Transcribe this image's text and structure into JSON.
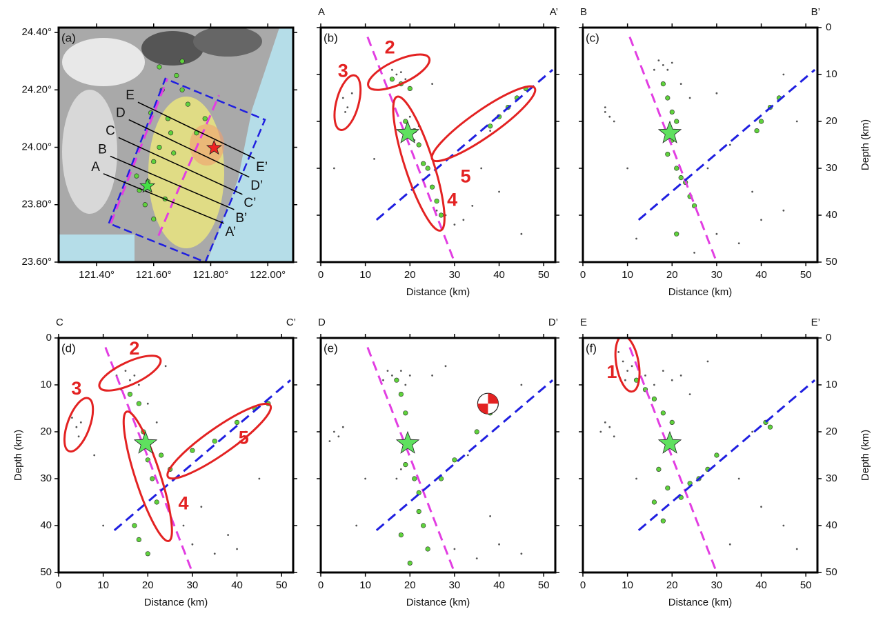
{
  "chart_data": [
    {
      "type": "map",
      "panel_label": "(a)",
      "y_axis": "left",
      "xlim": [
        121.267,
        122.089
      ],
      "ylim": [
        23.6,
        24.417
      ],
      "xticks": [
        {
          "value": 121.4,
          "label": "121.40°"
        },
        {
          "value": 121.6,
          "label": "121.60°"
        },
        {
          "value": 121.8,
          "label": "121.80°"
        },
        {
          "value": 122.0,
          "label": "122.00°"
        }
      ],
      "yticks": [
        {
          "value": 23.6,
          "label": "23.60°"
        },
        {
          "value": 23.8,
          "label": "23.80°"
        },
        {
          "value": 24.0,
          "label": "24.00°"
        },
        {
          "value": 24.2,
          "label": "24.20°"
        },
        {
          "value": 24.4,
          "label": "24.40°"
        }
      ],
      "series": [
        {
          "color": "#5fd23c",
          "x": [
            121.55,
            121.58,
            121.6,
            121.62,
            121.65,
            121.63,
            121.68,
            121.7,
            121.72,
            121.57,
            121.6,
            121.66,
            121.59,
            121.75,
            121.78,
            121.62,
            121.54,
            121.67,
            121.7,
            121.64
          ],
          "values": [
            23.85,
            23.88,
            23.95,
            24.0,
            24.1,
            24.2,
            24.25,
            24.3,
            24.15,
            23.8,
            23.75,
            24.05,
            24.12,
            24.05,
            24.1,
            24.28,
            23.9,
            23.98,
            24.2,
            23.82
          ]
        }
      ],
      "box": {
        "color": "#1f1fe0",
        "x": [
          121.443,
          121.641,
          121.99,
          121.781
        ],
        "values": [
          23.735,
          24.239,
          24.096,
          23.6
        ]
      },
      "lines": [
        {
          "color": "#e23ee2",
          "x": [
            121.45,
            121.648
          ],
          "values": [
            23.735,
            24.239
          ]
        },
        {
          "color": "#e23ee2",
          "x": [
            121.617,
            121.829
          ],
          "values": [
            23.692,
            24.181
          ]
        }
      ],
      "profiles": [
        {
          "label_start": "A",
          "label_end": "A’",
          "x": [
            121.424,
            121.846
          ],
          "values": [
            23.908,
            23.735
          ]
        },
        {
          "label_start": "B",
          "label_end": "B’",
          "x": [
            121.448,
            121.882
          ],
          "values": [
            23.969,
            23.783
          ]
        },
        {
          "label_start": "C",
          "label_end": "C’",
          "x": [
            121.477,
            121.911
          ],
          "values": [
            24.034,
            23.836
          ]
        },
        {
          "label_start": "D",
          "label_end": "D’",
          "x": [
            121.513,
            121.935
          ],
          "values": [
            24.096,
            23.896
          ]
        },
        {
          "label_start": "E",
          "label_end": "E’",
          "x": [
            121.545,
            121.954
          ],
          "values": [
            24.157,
            23.961
          ]
        }
      ],
      "stars": [
        {
          "color": "#ee2222",
          "x": 121.812,
          "y": 23.998
        },
        {
          "color": "#44e044",
          "x": 121.578,
          "y": 23.865
        }
      ]
    },
    {
      "type": "scatter",
      "panel_label": "(b)",
      "profile_start": "A",
      "profile_end": "A’",
      "xlabel": "Distance (km)",
      "y_axis": "none",
      "xlim": [
        0,
        52.6
      ],
      "ylim": [
        50,
        0
      ],
      "xticks": [
        0,
        10,
        20,
        30,
        40,
        50
      ],
      "yticks": [
        0,
        10,
        20,
        30,
        40,
        50
      ],
      "series": [
        {
          "color": "#555555",
          "x": [
            5,
            6,
            7,
            5.5,
            16,
            17,
            18,
            19,
            20,
            19,
            22,
            21,
            28,
            30,
            32,
            34,
            26,
            36,
            40,
            45,
            12,
            25,
            38,
            3
          ],
          "values": [
            15,
            17,
            14,
            18,
            9,
            10,
            9.5,
            11,
            19,
            22,
            21,
            24,
            40,
            42,
            41,
            38,
            39,
            30,
            35,
            44,
            28,
            12,
            22,
            30
          ]
        },
        {
          "color": "#5fd23c",
          "x": [
            16,
            18,
            20,
            19,
            21,
            22,
            23,
            24,
            25,
            26,
            27,
            38,
            40,
            42,
            44,
            46
          ],
          "values": [
            11,
            12,
            13,
            20,
            22,
            25,
            29,
            30,
            34,
            37,
            40,
            21,
            19,
            17,
            15,
            13
          ]
        }
      ],
      "lines": [
        {
          "color": "#e23ee2",
          "x": [
            10.5,
            30
          ],
          "values": [
            2,
            50
          ]
        },
        {
          "color": "#1f1fe0",
          "x": [
            12.5,
            52
          ],
          "values": [
            41,
            9
          ]
        }
      ],
      "stars": [
        {
          "color": "#5fe05f",
          "x": 19.5,
          "y": 22.5
        }
      ],
      "ellipses": [
        {
          "label": "3",
          "cx": 6,
          "cy": 16,
          "rx": 2.5,
          "ry": 6,
          "angle": 15,
          "lx": 5,
          "ly": 9.5
        },
        {
          "label": "2",
          "cx": 17.5,
          "cy": 9.5,
          "rx": 7.5,
          "ry": 2.5,
          "angle": -25,
          "lx": 15.5,
          "ly": 4.5
        },
        {
          "label": "4",
          "cx": 22,
          "cy": 29,
          "rx": 3.2,
          "ry": 15,
          "angle": -18,
          "lx": 29.5,
          "ly": 37
        },
        {
          "label": "5",
          "cx": 36.5,
          "cy": 20.5,
          "rx": 14,
          "ry": 2.8,
          "angle": -35,
          "lx": 32.5,
          "ly": 32
        }
      ]
    },
    {
      "type": "scatter",
      "panel_label": "(c)",
      "profile_start": "B",
      "profile_end": "B’",
      "xlabel": "Distance (km)",
      "ylabel": "Depth (km)",
      "y_axis": "right",
      "xlim": [
        0,
        52.6
      ],
      "ylim": [
        50,
        0
      ],
      "xticks": [
        0,
        10,
        20,
        30,
        40,
        50
      ],
      "yticks": [
        0,
        10,
        20,
        30,
        40,
        50
      ],
      "series": [
        {
          "color": "#555555",
          "x": [
            5,
            6,
            5,
            7,
            17,
            18,
            19,
            20,
            16,
            22,
            24,
            30,
            35,
            40,
            45,
            30,
            28,
            10,
            12,
            45,
            25,
            33,
            48,
            38
          ],
          "values": [
            18,
            19,
            17,
            20,
            7,
            8,
            9,
            7.5,
            9,
            12,
            15,
            44,
            46,
            41,
            39,
            14,
            30,
            30,
            45,
            10,
            48,
            25,
            20,
            35
          ]
        },
        {
          "color": "#5fd23c",
          "x": [
            18,
            19,
            20,
            21,
            20,
            19,
            21,
            22,
            23,
            24,
            25,
            21,
            40,
            42,
            44,
            39
          ],
          "values": [
            12,
            15,
            18,
            20,
            24,
            27,
            30,
            32,
            33,
            36,
            38,
            44,
            20,
            17,
            15,
            22
          ]
        }
      ],
      "lines": [
        {
          "color": "#e23ee2",
          "x": [
            10.5,
            30
          ],
          "values": [
            2,
            50
          ]
        },
        {
          "color": "#1f1fe0",
          "x": [
            12.5,
            52
          ],
          "values": [
            41,
            9
          ]
        }
      ],
      "stars": [
        {
          "color": "#5fe05f",
          "x": 19.5,
          "y": 22.5
        }
      ]
    },
    {
      "type": "scatter",
      "panel_label": "(d)",
      "profile_start": "C",
      "profile_end": "C’",
      "xlabel": "Distance (km)",
      "ylabel": "Depth (km)",
      "y_axis": "left",
      "xlim": [
        0,
        52.6
      ],
      "ylim": [
        50,
        0
      ],
      "xticks": [
        0,
        10,
        20,
        30,
        40,
        50
      ],
      "yticks": [
        0,
        10,
        20,
        30,
        40,
        50
      ],
      "series": [
        {
          "color": "#555555",
          "x": [
            3,
            4,
            5,
            4.5,
            13,
            15,
            16,
            17,
            18,
            14,
            20,
            22,
            26,
            28,
            30,
            35,
            38,
            40,
            32,
            45,
            8,
            10,
            24,
            42
          ],
          "values": [
            17,
            19,
            18,
            21,
            8,
            7,
            9,
            8,
            10,
            11,
            14,
            18,
            30,
            40,
            44,
            46,
            42,
            45,
            36,
            30,
            25,
            40,
            6,
            20
          ]
        },
        {
          "color": "#5fd23c",
          "x": [
            16,
            18,
            19,
            20,
            21,
            22,
            17,
            18,
            20,
            23,
            25,
            30,
            35,
            40,
            44,
            47
          ],
          "values": [
            12,
            14,
            20,
            26,
            30,
            35,
            40,
            43,
            46,
            25,
            28,
            24,
            22,
            18,
            15,
            14
          ]
        }
      ],
      "lines": [
        {
          "color": "#e23ee2",
          "x": [
            10.5,
            30
          ],
          "values": [
            2,
            50
          ]
        },
        {
          "color": "#1f1fe0",
          "x": [
            12.5,
            52
          ],
          "values": [
            41,
            9
          ]
        }
      ],
      "stars": [
        {
          "color": "#5fe05f",
          "x": 19.5,
          "y": 22.5
        }
      ],
      "ellipses": [
        {
          "label": "3",
          "cx": 4.5,
          "cy": 18.5,
          "rx": 2.5,
          "ry": 6,
          "angle": 20,
          "lx": 4,
          "ly": 11
        },
        {
          "label": "2",
          "cx": 16,
          "cy": 7.5,
          "rx": 7.5,
          "ry": 2.4,
          "angle": -25,
          "lx": 17,
          "ly": 2.5
        },
        {
          "label": "4",
          "cx": 20,
          "cy": 29.5,
          "rx": 2.8,
          "ry": 14.5,
          "angle": -18,
          "lx": 28,
          "ly": 35.5
        },
        {
          "label": "5",
          "cx": 36,
          "cy": 22,
          "rx": 14,
          "ry": 2.8,
          "angle": -35,
          "lx": 41.5,
          "ly": 21.5
        }
      ]
    },
    {
      "type": "scatter",
      "panel_label": "(e)",
      "profile_start": "D",
      "profile_end": "D’",
      "xlabel": "Distance (km)",
      "y_axis": "none",
      "xlim": [
        0,
        52.6
      ],
      "ylim": [
        50,
        0
      ],
      "xticks": [
        0,
        10,
        20,
        30,
        40,
        50
      ],
      "yticks": [
        0,
        10,
        20,
        30,
        40,
        50
      ],
      "series": [
        {
          "color": "#555555",
          "x": [
            3,
            4,
            2,
            5,
            15,
            16,
            17,
            18,
            19,
            20,
            14,
            25,
            18,
            17,
            30,
            35,
            40,
            45,
            28,
            10,
            33,
            45,
            8,
            38
          ],
          "values": [
            20,
            21,
            22,
            19,
            7,
            8,
            9,
            7,
            10,
            8,
            9,
            8,
            28,
            30,
            45,
            47,
            44,
            46,
            6,
            30,
            25,
            10,
            40,
            38
          ]
        },
        {
          "color": "#5fd23c",
          "x": [
            17,
            18,
            19,
            20,
            19,
            21,
            22,
            22,
            23,
            24,
            20,
            27,
            30,
            35,
            38,
            18
          ],
          "values": [
            9,
            12,
            16,
            22,
            27,
            30,
            33,
            37,
            40,
            45,
            48,
            30,
            26,
            20,
            16,
            42
          ]
        }
      ],
      "lines": [
        {
          "color": "#e23ee2",
          "x": [
            10.5,
            30
          ],
          "values": [
            2,
            50
          ]
        },
        {
          "color": "#1f1fe0",
          "x": [
            12.5,
            52
          ],
          "values": [
            41,
            9
          ]
        }
      ],
      "stars": [
        {
          "color": "#5fe05f",
          "x": 19.5,
          "y": 22.5
        }
      ],
      "focal_mechanism": {
        "x": 37.5,
        "y": 14
      }
    },
    {
      "type": "scatter",
      "panel_label": "(f)",
      "profile_start": "E",
      "profile_end": "E’",
      "xlabel": "Distance (km)",
      "ylabel": "Depth (km)",
      "y_axis": "right",
      "xlim": [
        0,
        52.6
      ],
      "ylim": [
        50,
        0
      ],
      "xticks": [
        0,
        10,
        20,
        30,
        40,
        50
      ],
      "yticks": [
        0,
        10,
        20,
        30,
        40,
        50
      ],
      "series": [
        {
          "color": "#555555",
          "x": [
            8,
            9,
            10,
            9.5,
            11,
            14,
            16,
            18,
            20,
            22,
            5,
            6,
            4,
            7,
            24,
            28,
            35,
            40,
            45,
            33,
            48,
            30,
            12,
            38
          ],
          "values": [
            3,
            5,
            7,
            9,
            6,
            8,
            10,
            7,
            9,
            8,
            18,
            19,
            20,
            21,
            12,
            5,
            30,
            36,
            40,
            44,
            45,
            25,
            30,
            20
          ]
        },
        {
          "color": "#5fd23c",
          "x": [
            12,
            14,
            16,
            18,
            20,
            17,
            19,
            16,
            18,
            22,
            24,
            26,
            28,
            30,
            41,
            42
          ],
          "values": [
            9,
            11,
            13,
            16,
            18,
            28,
            32,
            35,
            39,
            34,
            31,
            30,
            28,
            25,
            18,
            19
          ]
        }
      ],
      "lines": [
        {
          "color": "#e23ee2",
          "x": [
            10.5,
            30
          ],
          "values": [
            2,
            50
          ]
        },
        {
          "color": "#1f1fe0",
          "x": [
            12.5,
            52
          ],
          "values": [
            41,
            9
          ]
        }
      ],
      "stars": [
        {
          "color": "#5fe05f",
          "x": 19.5,
          "y": 22.5
        }
      ],
      "ellipses": [
        {
          "label": "1",
          "cx": 10,
          "cy": 5.5,
          "rx": 2.5,
          "ry": 6,
          "angle": -10,
          "lx": 6.5,
          "ly": 7.5
        }
      ]
    }
  ]
}
